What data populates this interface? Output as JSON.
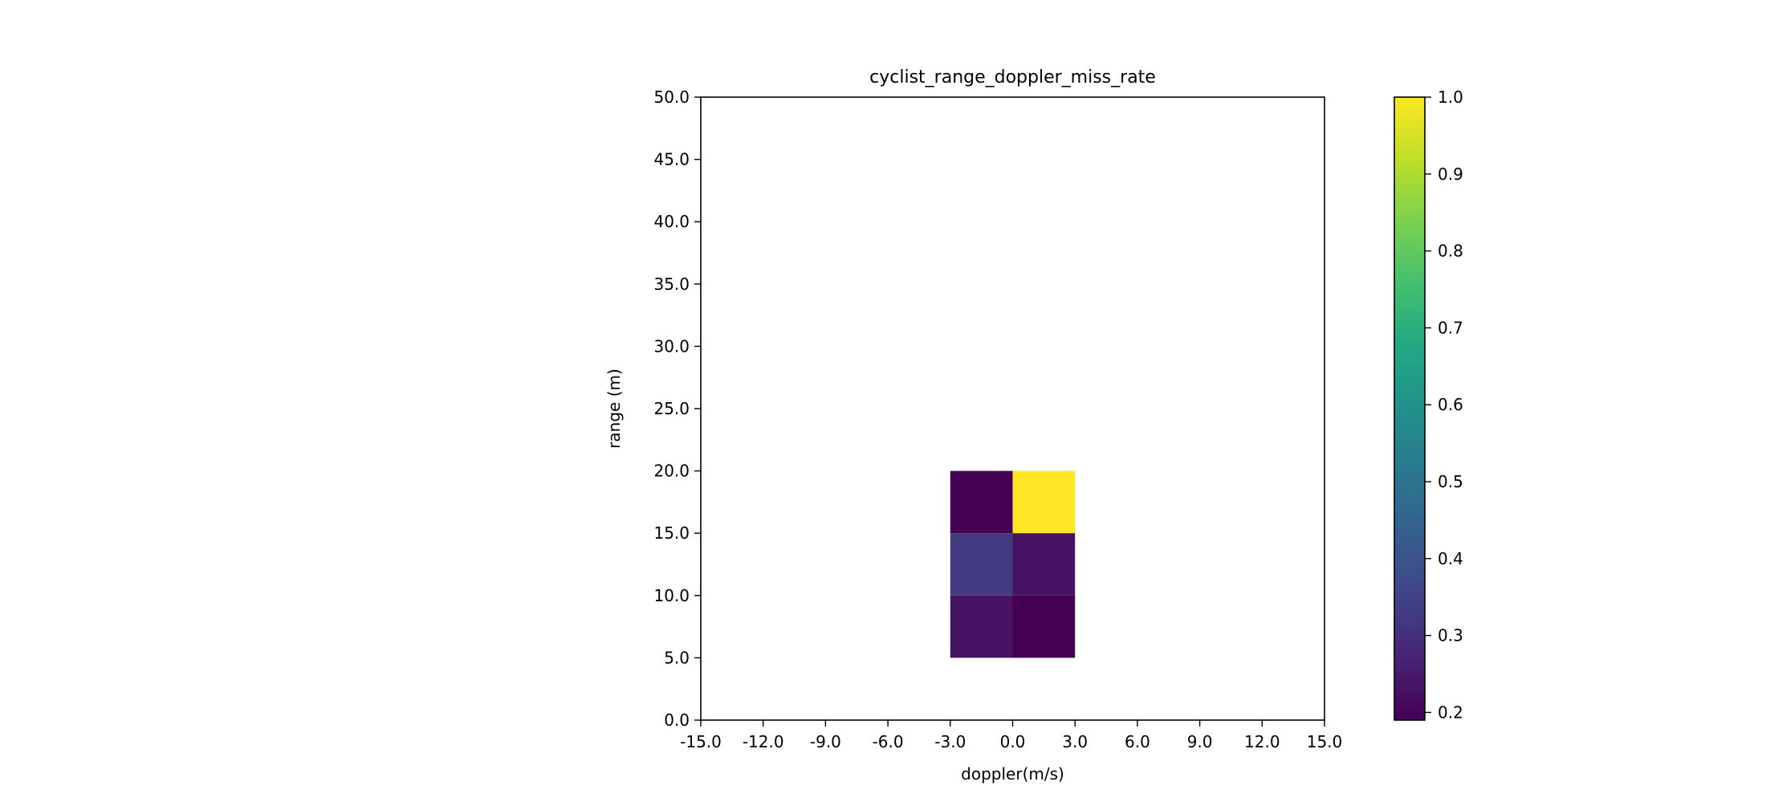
{
  "chart_data": {
    "type": "heatmap",
    "title": "cyclist_range_doppler_miss_rate",
    "xlabel": "doppler(m/s)",
    "ylabel": "range (m)",
    "xlim": [
      -15,
      15
    ],
    "ylim": [
      0,
      50
    ],
    "x_ticks": [
      "-15.0",
      "-12.0",
      "-9.0",
      "-6.0",
      "-3.0",
      "0.0",
      "3.0",
      "6.0",
      "9.0",
      "12.0",
      "15.0"
    ],
    "y_ticks": [
      "0.0",
      "5.0",
      "10.0",
      "15.0",
      "20.0",
      "25.0",
      "30.0",
      "35.0",
      "40.0",
      "45.0",
      "50.0"
    ],
    "colormap": "viridis",
    "colorbar": {
      "min": 0.19,
      "max": 1.0,
      "ticks": [
        "0.2",
        "0.3",
        "0.4",
        "0.5",
        "0.6",
        "0.7",
        "0.8",
        "0.9",
        "1.0"
      ]
    },
    "cells": [
      {
        "doppler_range": [
          -3,
          0
        ],
        "range_range": [
          15,
          20
        ],
        "value": 0.19
      },
      {
        "doppler_range": [
          0,
          3
        ],
        "range_range": [
          15,
          20
        ],
        "value": 1.0
      },
      {
        "doppler_range": [
          -3,
          0
        ],
        "range_range": [
          10,
          15
        ],
        "value": 0.33
      },
      {
        "doppler_range": [
          0,
          3
        ],
        "range_range": [
          10,
          15
        ],
        "value": 0.23
      },
      {
        "doppler_range": [
          -3,
          0
        ],
        "range_range": [
          5,
          10
        ],
        "value": 0.23
      },
      {
        "doppler_range": [
          0,
          3
        ],
        "range_range": [
          5,
          10
        ],
        "value": 0.19
      }
    ]
  }
}
